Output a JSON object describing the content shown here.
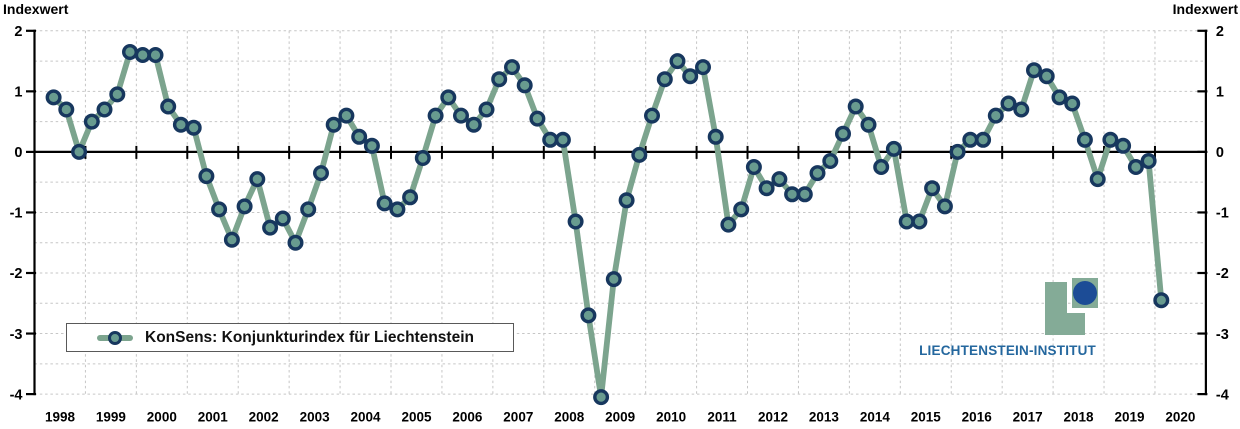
{
  "titles": {
    "left": "Indexwert",
    "right": "Indexwert"
  },
  "legend": {
    "label": "KonSens: Konjunkturindex für Liechtenstein"
  },
  "logo": {
    "text": "LIECHTENSTEIN-INSTITUT"
  },
  "colors": {
    "line_green": "#7CA48E",
    "marker_fill": "#689B8F",
    "marker_ring_navy": "#17375E",
    "grid_gray": "#C6C6C6",
    "axis_black": "#000000",
    "logo_green": "#84AB97",
    "logo_circle_navy": "#1C4C96",
    "logo_text_blue": "#24679E"
  },
  "chart_data": {
    "type": "line",
    "title": "",
    "ylabel_left": "Indexwert",
    "ylabel_right": "Indexwert",
    "ylim": [
      -4,
      2
    ],
    "y_ticks": [
      2,
      1,
      0,
      -1,
      -2,
      -3,
      -4
    ],
    "y_minor_grid_step": 0.5,
    "grid": "dashed, vertical at each year boundary and horizontal every 0.5",
    "legend_position": "bottom-left inside plot",
    "x_tick_labels": [
      "1998",
      "1999",
      "2000",
      "2001",
      "2002",
      "2003",
      "2004",
      "2005",
      "2006",
      "2007",
      "2008",
      "2009",
      "2010",
      "2011",
      "2012",
      "2013",
      "2014",
      "2015",
      "2016",
      "2017",
      "2018",
      "2019",
      "2020"
    ],
    "x_start": {
      "year": 1998,
      "quarter": 2
    },
    "series": [
      {
        "name": "KonSens: Konjunkturindex für Liechtenstein",
        "quarters": [
          "1998Q2",
          "1998Q3",
          "1998Q4",
          "1999Q1",
          "1999Q2",
          "1999Q3",
          "1999Q4",
          "2000Q1",
          "2000Q2",
          "2000Q3",
          "2000Q4",
          "2001Q1",
          "2001Q2",
          "2001Q3",
          "2001Q4",
          "2002Q1",
          "2002Q2",
          "2002Q3",
          "2002Q4",
          "2003Q1",
          "2003Q2",
          "2003Q3",
          "2003Q4",
          "2004Q1",
          "2004Q2",
          "2004Q3",
          "2004Q4",
          "2005Q1",
          "2005Q2",
          "2005Q3",
          "2005Q4",
          "2006Q1",
          "2006Q2",
          "2006Q3",
          "2006Q4",
          "2007Q1",
          "2007Q2",
          "2007Q3",
          "2007Q4",
          "2008Q1",
          "2008Q2",
          "2008Q3",
          "2008Q4",
          "2009Q1",
          "2009Q2",
          "2009Q3",
          "2009Q4",
          "2010Q1",
          "2010Q2",
          "2010Q3",
          "2010Q4",
          "2011Q1",
          "2011Q2",
          "2011Q3",
          "2011Q4",
          "2012Q1",
          "2012Q2",
          "2012Q3",
          "2012Q4",
          "2013Q1",
          "2013Q2",
          "2013Q3",
          "2013Q4",
          "2014Q1",
          "2014Q2",
          "2014Q3",
          "2014Q4",
          "2015Q1",
          "2015Q2",
          "2015Q3",
          "2015Q4",
          "2016Q1",
          "2016Q2",
          "2016Q3",
          "2016Q4",
          "2017Q1",
          "2017Q2",
          "2017Q3",
          "2017Q4",
          "2018Q1",
          "2018Q2",
          "2018Q3",
          "2018Q4",
          "2019Q1",
          "2019Q2",
          "2019Q3",
          "2019Q4",
          "2020Q1"
        ],
        "values": [
          0.9,
          0.7,
          0.0,
          0.5,
          0.7,
          0.95,
          1.65,
          1.6,
          1.6,
          0.75,
          0.45,
          0.4,
          -0.4,
          -0.95,
          -1.45,
          -0.9,
          -0.45,
          -1.25,
          -1.1,
          -1.5,
          -0.95,
          -0.35,
          0.45,
          0.6,
          0.25,
          0.1,
          -0.85,
          -0.95,
          -0.75,
          -0.1,
          0.6,
          0.9,
          0.6,
          0.45,
          0.7,
          1.2,
          1.4,
          1.1,
          0.55,
          0.2,
          0.2,
          -1.15,
          -2.7,
          -4.05,
          -2.1,
          -0.8,
          -0.05,
          0.6,
          1.2,
          1.5,
          1.25,
          1.4,
          0.25,
          -1.2,
          -0.95,
          -0.25,
          -0.6,
          -0.45,
          -0.7,
          -0.7,
          -0.35,
          -0.15,
          0.3,
          0.75,
          0.45,
          -0.25,
          0.05,
          -1.15,
          -1.15,
          -0.6,
          -0.9,
          0.0,
          0.2,
          0.2,
          0.6,
          0.8,
          0.7,
          1.35,
          1.25,
          0.9,
          0.8,
          0.2,
          -0.45,
          0.2,
          0.1,
          -0.25,
          -0.15,
          -2.45
        ]
      }
    ]
  }
}
